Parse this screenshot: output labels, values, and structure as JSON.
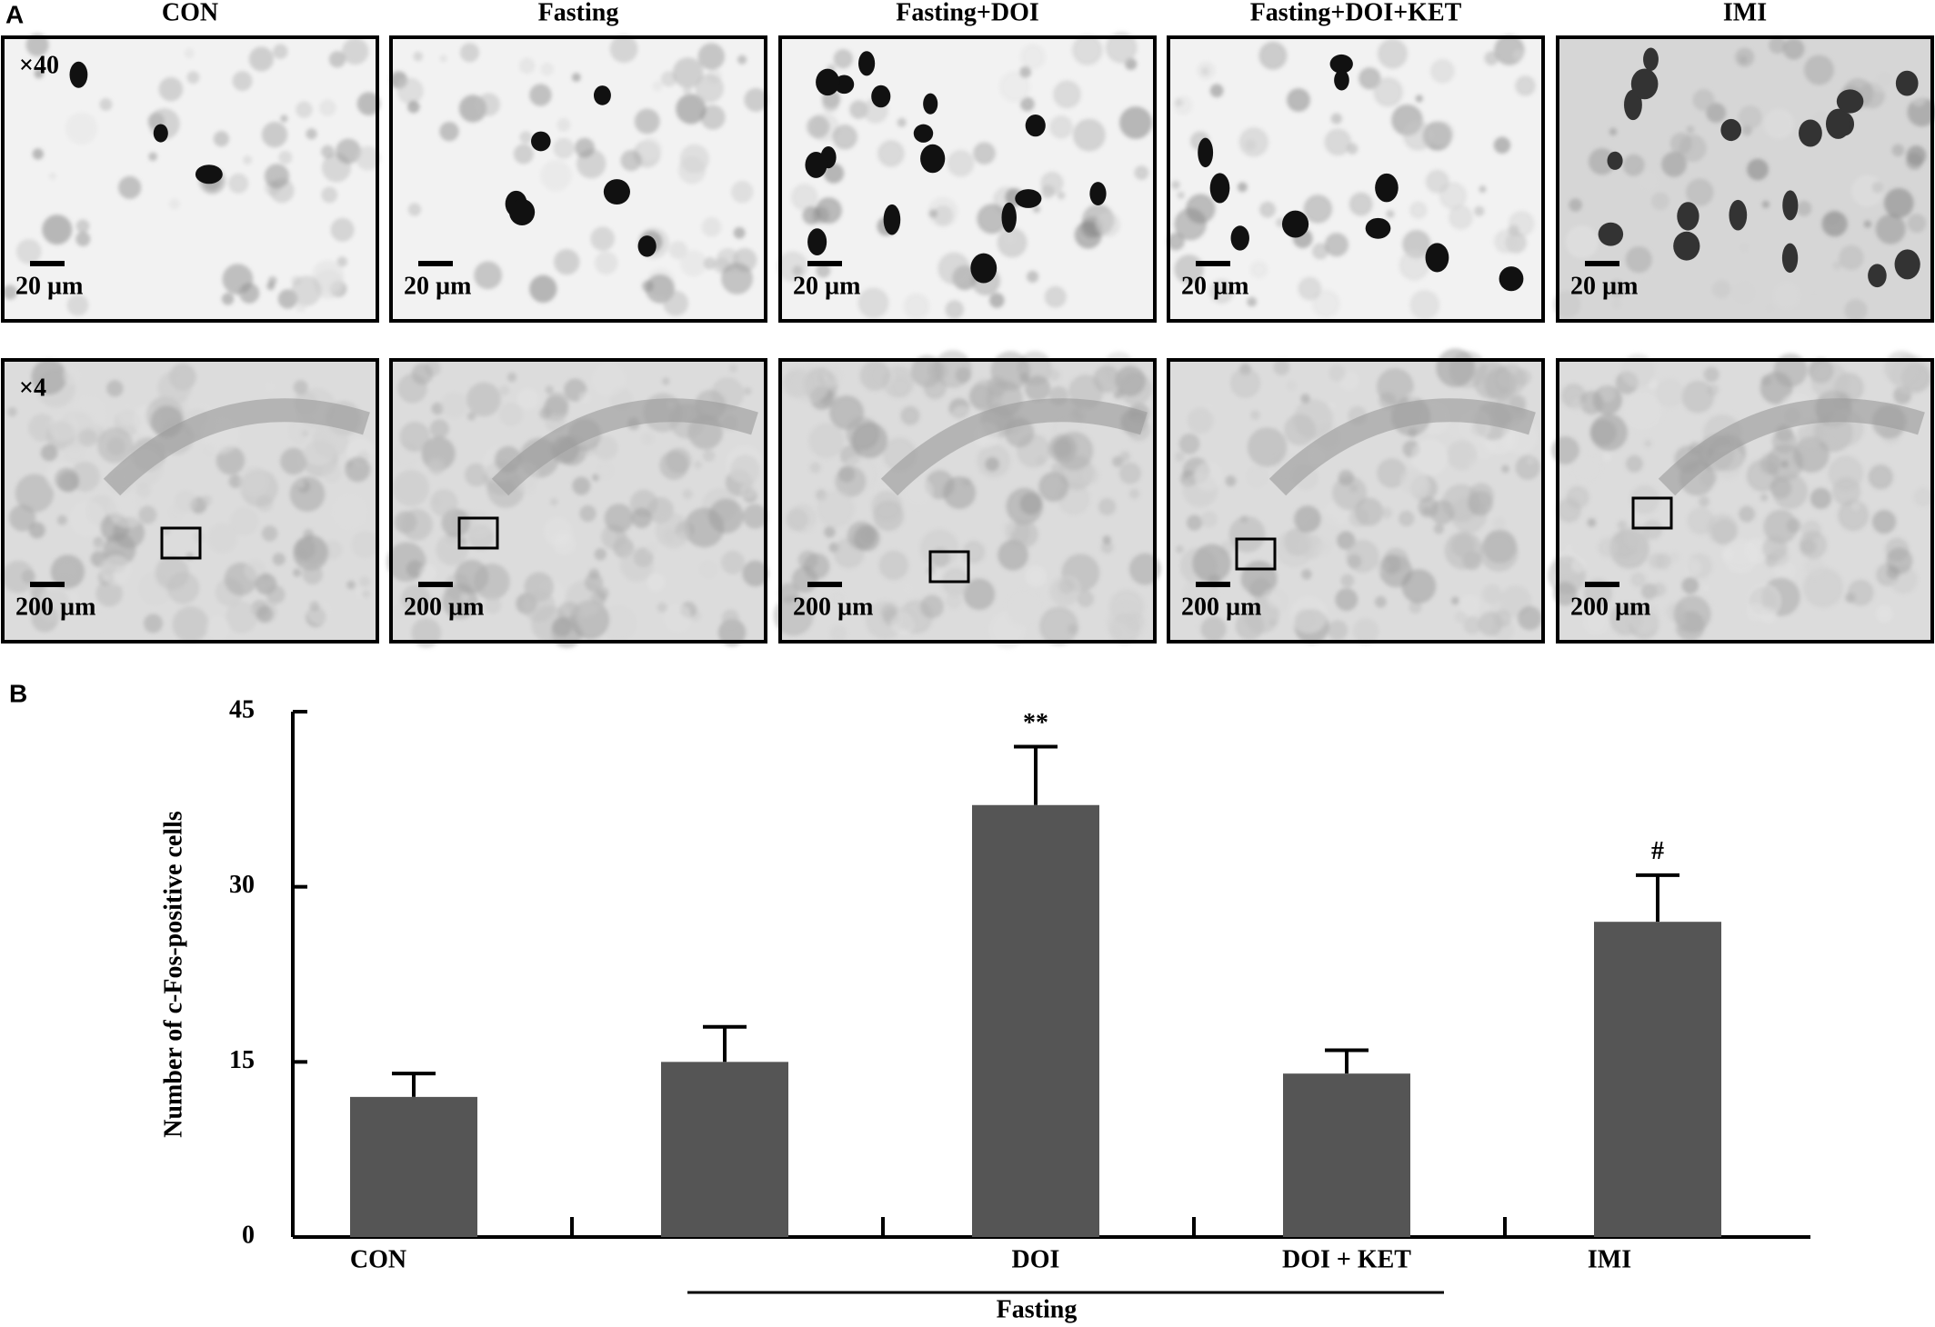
{
  "panel_a": {
    "label": "A",
    "columns": [
      "CON",
      "Fasting",
      "Fasting+DOI",
      "Fasting+DOI+KET",
      "IMI"
    ],
    "rows": [
      {
        "magnification": "×40",
        "scale_bars": [
          "20 µm",
          "20 µm",
          "20 µm",
          "20 µm",
          "20 µm"
        ]
      },
      {
        "magnification": "×4",
        "scale_bars": [
          "200 µm",
          "200 µm",
          "200 µm",
          "200 µm",
          "200 µm"
        ]
      }
    ]
  },
  "panel_b_label": "B",
  "chart_data": {
    "type": "bar",
    "y_label": "Number of c-Fos-positive cells",
    "categories": [
      "CON",
      null,
      "DOI",
      "DOI + KET",
      "IMI"
    ],
    "values": [
      12,
      15,
      37,
      14,
      27
    ],
    "errors": [
      2,
      3,
      5,
      2,
      4
    ],
    "significance": [
      null,
      null,
      "**",
      null,
      "#"
    ],
    "group_label": "Fasting",
    "color": "#555555",
    "ylim": [
      0,
      45
    ],
    "yticks": [
      0,
      15,
      30,
      45
    ]
  }
}
